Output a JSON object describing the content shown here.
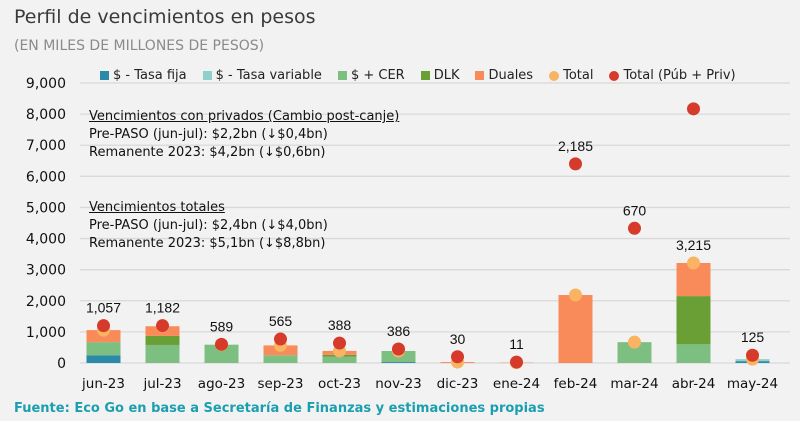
{
  "title": "Perfil de vencimientos en pesos",
  "subtitle": "(EN MILES DE MILLONES DE PESOS)",
  "annotations": {
    "privados": {
      "heading": "Vencimientos con privados (Cambio post-canje)",
      "line1": "Pre-PASO (jun-jul): $2,2bn (↓$0,4bn)",
      "line2": "Remanente 2023: $4,2bn (↓$0,6bn)"
    },
    "totales": {
      "heading": "Vencimientos totales",
      "line1": "Pre-PASO (jun-jul): $2,4bn (↓$4,0bn)",
      "line2": "Remanente 2023: $5,1bn (↓$8,8bn)"
    }
  },
  "footnote": "Fuente: Eco Go en base a Secretaría de Finanzas y estimaciones propias",
  "chart_data": {
    "type": "bar",
    "stacked": true,
    "ylim": [
      0,
      9000
    ],
    "yticks": [
      "0",
      "1,000",
      "2,000",
      "3,000",
      "4,000",
      "5,000",
      "6,000",
      "7,000",
      "8,000",
      "9,000"
    ],
    "grid": true,
    "legend_position": "top",
    "categories": [
      "jun-23",
      "jul-23",
      "ago-23",
      "sep-23",
      "oct-23",
      "nov-23",
      "dic-23",
      "ene-24",
      "feb-24",
      "mar-24",
      "abr-24",
      "may-24"
    ],
    "series": [
      {
        "name": "$ - Tasa fija",
        "color": "#2a8aa8",
        "values": [
          250,
          0,
          0,
          0,
          0,
          30,
          0,
          0,
          0,
          0,
          0,
          60
        ]
      },
      {
        "name": "$ - Tasa variable",
        "color": "#8fd0cc",
        "values": [
          0,
          0,
          0,
          0,
          0,
          0,
          0,
          0,
          0,
          0,
          0,
          65
        ]
      },
      {
        "name": "$ + CER",
        "color": "#7dbf80",
        "values": [
          420,
          580,
          589,
          250,
          200,
          356,
          0,
          0,
          0,
          670,
          600,
          0
        ]
      },
      {
        "name": "DLK",
        "color": "#6a9f36",
        "values": [
          0,
          290,
          0,
          0,
          60,
          0,
          0,
          0,
          0,
          0,
          1550,
          0
        ]
      },
      {
        "name": "Duales",
        "color": "#f98a5a",
        "values": [
          387,
          312,
          0,
          315,
          128,
          0,
          30,
          11,
          2185,
          0,
          1065,
          0
        ]
      }
    ],
    "points": [
      {
        "name": "Total",
        "color": "#f8b462",
        "values": [
          1057,
          1182,
          589,
          565,
          388,
          386,
          30,
          11,
          2185,
          670,
          3215,
          125
        ],
        "labels": [
          "1,057",
          "1,182",
          "589",
          "565",
          "388",
          "386",
          "30",
          "11",
          "2,185",
          "670",
          "3,215",
          "125"
        ]
      },
      {
        "name": "Total (Púb + Priv)",
        "color": "#d63a2a",
        "values": [
          1200,
          1200,
          600,
          770,
          640,
          450,
          200,
          30,
          6400,
          4330,
          8170,
          250
        ]
      }
    ]
  }
}
